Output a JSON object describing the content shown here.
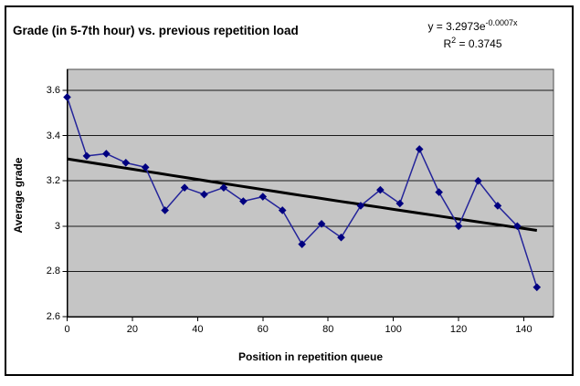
{
  "title": "Grade (in 5-7th hour) vs. previous repetition load",
  "equation": {
    "line1_base": "y = 3.2973e",
    "line1_sup": "-0.0007x",
    "line2_base": "R",
    "line2_sup": "2",
    "line2_rest": " = 0.3745"
  },
  "chart_data": {
    "type": "line",
    "title": "Grade (in 5-7th hour) vs. previous repetition load",
    "xlabel": "Position in repetition queue",
    "ylabel": "Average grade",
    "x": [
      0,
      6,
      12,
      18,
      24,
      30,
      36,
      42,
      48,
      54,
      60,
      66,
      72,
      78,
      84,
      90,
      96,
      102,
      108,
      114,
      120,
      126,
      132,
      138,
      144
    ],
    "values": [
      3.57,
      3.31,
      3.32,
      3.28,
      3.26,
      3.07,
      3.17,
      3.14,
      3.17,
      3.11,
      3.13,
      3.07,
      2.92,
      3.01,
      2.95,
      3.09,
      3.16,
      3.1,
      3.34,
      3.15,
      3.0,
      3.2,
      3.09,
      3.0,
      2.73
    ],
    "trendline": {
      "type": "exponential",
      "a": 3.2973,
      "b": -0.0007,
      "r_squared": 0.3745,
      "equation_text": "y = 3.2973e^(-0.0007x)"
    },
    "xlim": [
      0,
      149
    ],
    "ylim": [
      2.6,
      3.693
    ],
    "x_ticks": [
      0,
      20,
      40,
      60,
      80,
      100,
      120,
      140
    ],
    "y_ticks": [
      2.6,
      2.8,
      3,
      3.2,
      3.4,
      3.6
    ],
    "y_tick_labels": [
      "2.6",
      "2.8",
      "3",
      "3.2",
      "3.4",
      "3.6"
    ],
    "grid": "horizontal-major",
    "legend": "none",
    "marker": "diamond",
    "colors": {
      "plot_bg": "#c5c5c5",
      "plot_border": "#4d4d4d",
      "axis": "#000000",
      "gridline": "#1a1a1a",
      "series_line": "#24249a",
      "marker_fill": "#000080",
      "trendline": "#000000",
      "text": "#000000",
      "background": "#ffffff",
      "frame_border": "#000000"
    }
  }
}
